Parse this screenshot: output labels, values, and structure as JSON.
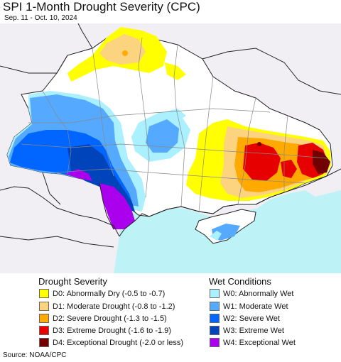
{
  "title": "SPI 1-Month Drought Severity (CPC)",
  "subtitle": "Sep. 11 - Oct. 10, 2024",
  "source": "Source: NOAA/CPC",
  "colors": {
    "background_land": "#f1eff4",
    "region_fill": "#ffffff",
    "sea": "#bdf3f7",
    "border_dark": "#222222",
    "border_gray": "#888888"
  },
  "legend": {
    "drought_heading": "Drought Severity",
    "wet_heading": "Wet Conditions",
    "drought": [
      {
        "label": "D0: Abnormally Dry (-0.5 to -0.7)",
        "color": "#ffff00"
      },
      {
        "label": "D1: Moderate Drought (-0.8 to -1.2)",
        "color": "#fcd37f"
      },
      {
        "label": "D2: Severe Drought (-1.3 to -1.5)",
        "color": "#ffaa00"
      },
      {
        "label": "D3: Extreme Drought (-1.6 to -1.9)",
        "color": "#e60000"
      },
      {
        "label": "D4: Exceptional Drought (-2.0 or less)",
        "color": "#730000"
      }
    ],
    "wet": [
      {
        "label": "W0: Abnormally Wet",
        "color": "#aaf0ff"
      },
      {
        "label": "W1: Moderate Wet",
        "color": "#55aaff"
      },
      {
        "label": "W2: Severe Wet",
        "color": "#0066ff"
      },
      {
        "label": "W3: Extreme Wet",
        "color": "#0044bb"
      },
      {
        "label": "W4: Exceptional Wet",
        "color": "#aa00ee"
      }
    ]
  }
}
